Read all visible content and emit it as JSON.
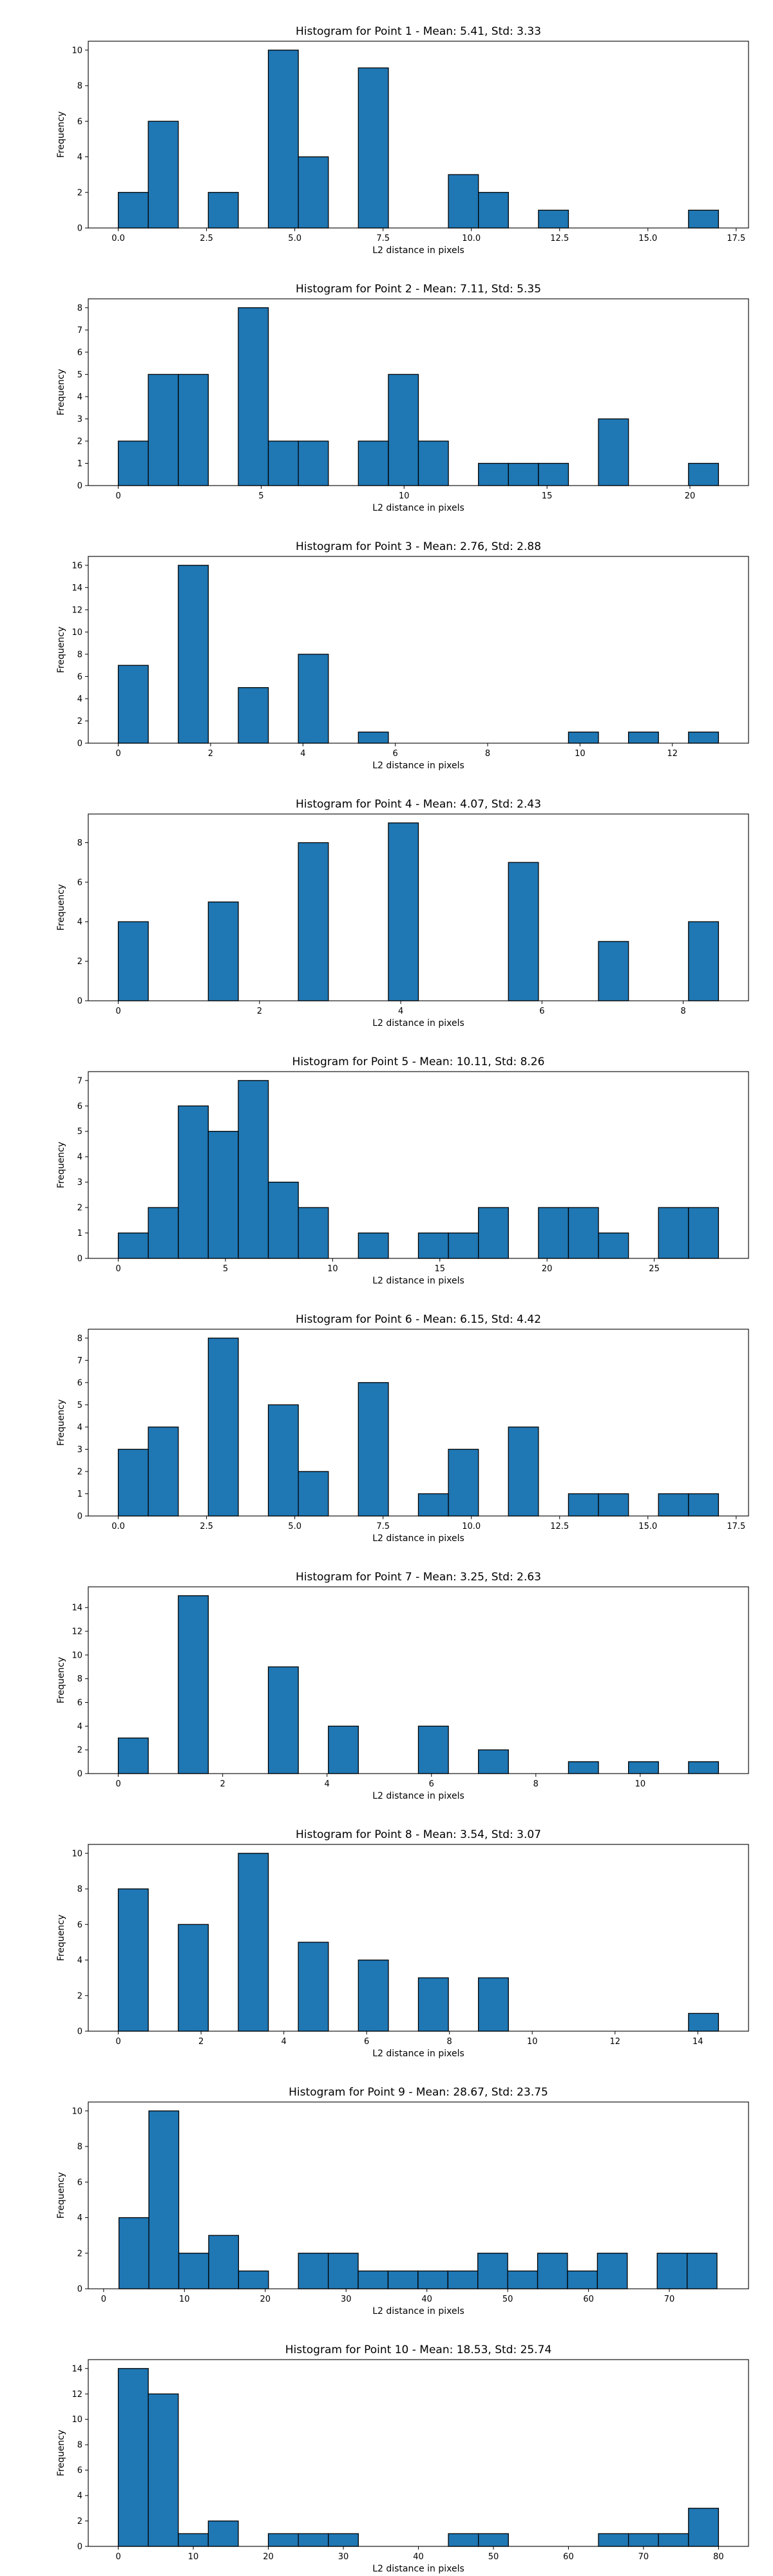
{
  "figure": {
    "xlabel": "L2 distance in pixels",
    "ylabel": "Frequency",
    "bar_color": "#1f77b4",
    "edge_color": "#000000"
  },
  "chart_data": [
    {
      "type": "bar",
      "title": "Histogram for Point 1 - Mean: 5.41, Std: 3.33",
      "xlabel": "L2 distance in pixels",
      "ylabel": "Frequency",
      "xlim": [
        -0.85,
        17.85
      ],
      "ylim": [
        0,
        10.5
      ],
      "xticks": [
        0.0,
        2.5,
        5.0,
        7.5,
        10.0,
        12.5,
        15.0,
        17.5
      ],
      "xtick_labels": [
        "0.0",
        "2.5",
        "5.0",
        "7.5",
        "10.0",
        "12.5",
        "15.0",
        "17.5"
      ],
      "yticks": [
        0,
        2,
        4,
        6,
        8,
        10
      ],
      "bin_edges": [
        0.0,
        0.85,
        1.7,
        2.55,
        3.4,
        4.25,
        5.1,
        5.95,
        6.8,
        7.65,
        8.5,
        9.35,
        10.2,
        11.05,
        11.9,
        12.75,
        13.6,
        14.45,
        15.3,
        16.15,
        17.0
      ],
      "counts": [
        2,
        6,
        0,
        2,
        0,
        10,
        4,
        0,
        9,
        0,
        0,
        3,
        2,
        0,
        1,
        0,
        0,
        0,
        0,
        1
      ]
    },
    {
      "type": "bar",
      "title": "Histogram for Point 2 - Mean: 7.11, Std: 5.35",
      "xlabel": "L2 distance in pixels",
      "ylabel": "Frequency",
      "xlim": [
        -1.05,
        22.05
      ],
      "ylim": [
        0,
        8.4
      ],
      "xticks": [
        0,
        5,
        10,
        15,
        20
      ],
      "xtick_labels": [
        "0",
        "5",
        "10",
        "15",
        "20"
      ],
      "yticks": [
        0,
        1,
        2,
        3,
        4,
        5,
        6,
        7,
        8
      ],
      "bin_edges": [
        0.0,
        1.05,
        2.1,
        3.15,
        4.2,
        5.25,
        6.3,
        7.35,
        8.4,
        9.45,
        10.5,
        11.55,
        12.6,
        13.65,
        14.7,
        15.75,
        16.8,
        17.85,
        18.9,
        19.95,
        21.0
      ],
      "counts": [
        2,
        5,
        5,
        0,
        8,
        2,
        2,
        0,
        2,
        5,
        2,
        0,
        1,
        1,
        1,
        0,
        3,
        0,
        0,
        1
      ]
    },
    {
      "type": "bar",
      "title": "Histogram for Point 3 - Mean: 2.76, Std: 2.88",
      "xlabel": "L2 distance in pixels",
      "ylabel": "Frequency",
      "xlim": [
        -0.65,
        13.65
      ],
      "ylim": [
        0,
        16.8
      ],
      "xticks": [
        0,
        2,
        4,
        6,
        8,
        10,
        12
      ],
      "xtick_labels": [
        "0",
        "2",
        "4",
        "6",
        "8",
        "10",
        "12"
      ],
      "yticks": [
        0,
        2,
        4,
        6,
        8,
        10,
        12,
        14,
        16
      ],
      "bin_edges": [
        0.0,
        0.65,
        1.3,
        1.95,
        2.6,
        3.25,
        3.9,
        4.55,
        5.2,
        5.85,
        6.5,
        7.15,
        7.8,
        8.45,
        9.1,
        9.75,
        10.4,
        11.05,
        11.7,
        12.35,
        13.0
      ],
      "counts": [
        7,
        0,
        16,
        0,
        5,
        0,
        8,
        0,
        1,
        0,
        0,
        0,
        0,
        0,
        0,
        1,
        0,
        1,
        0,
        1
      ]
    },
    {
      "type": "bar",
      "title": "Histogram for Point 4 - Mean: 4.07, Std: 2.43",
      "xlabel": "L2 distance in pixels",
      "ylabel": "Frequency",
      "xlim": [
        -0.425,
        8.925
      ],
      "ylim": [
        0,
        9.45
      ],
      "xticks": [
        0,
        2,
        4,
        6,
        8
      ],
      "xtick_labels": [
        "0",
        "2",
        "4",
        "6",
        "8"
      ],
      "yticks": [
        0,
        2,
        4,
        6,
        8
      ],
      "bin_edges": [
        0.0,
        0.425,
        0.85,
        1.275,
        1.7,
        2.125,
        2.55,
        2.975,
        3.4,
        3.825,
        4.25,
        4.675,
        5.1,
        5.525,
        5.95,
        6.375,
        6.8,
        7.225,
        7.65,
        8.075,
        8.5
      ],
      "counts": [
        4,
        0,
        0,
        5,
        0,
        0,
        8,
        0,
        0,
        9,
        0,
        0,
        0,
        7,
        0,
        0,
        3,
        0,
        0,
        4
      ]
    },
    {
      "type": "bar",
      "title": "Histogram for Point 5 - Mean: 10.11, Std: 8.26",
      "xlabel": "L2 distance in pixels",
      "ylabel": "Frequency",
      "xlim": [
        -1.4,
        29.4
      ],
      "ylim": [
        0,
        7.35
      ],
      "xticks": [
        0,
        5,
        10,
        15,
        20,
        25
      ],
      "xtick_labels": [
        "0",
        "5",
        "10",
        "15",
        "20",
        "25"
      ],
      "yticks": [
        0,
        1,
        2,
        3,
        4,
        5,
        6,
        7
      ],
      "bin_edges": [
        0.0,
        1.4,
        2.8,
        4.2,
        5.6,
        7.0,
        8.4,
        9.8,
        11.2,
        12.6,
        14.0,
        15.4,
        16.8,
        18.2,
        19.6,
        21.0,
        22.4,
        23.8,
        25.2,
        26.6,
        28.0
      ],
      "counts": [
        1,
        2,
        6,
        5,
        7,
        3,
        2,
        0,
        1,
        0,
        1,
        1,
        2,
        0,
        2,
        2,
        1,
        0,
        2,
        2
      ]
    },
    {
      "type": "bar",
      "title": "Histogram for Point 6 - Mean: 6.15, Std: 4.42",
      "xlabel": "L2 distance in pixels",
      "ylabel": "Frequency",
      "xlim": [
        -0.85,
        17.85
      ],
      "ylim": [
        0,
        8.4
      ],
      "xticks": [
        0.0,
        2.5,
        5.0,
        7.5,
        10.0,
        12.5,
        15.0,
        17.5
      ],
      "xtick_labels": [
        "0.0",
        "2.5",
        "5.0",
        "7.5",
        "10.0",
        "12.5",
        "15.0",
        "17.5"
      ],
      "yticks": [
        0,
        1,
        2,
        3,
        4,
        5,
        6,
        7,
        8
      ],
      "bin_edges": [
        0.0,
        0.85,
        1.7,
        2.55,
        3.4,
        4.25,
        5.1,
        5.95,
        6.8,
        7.65,
        8.5,
        9.35,
        10.2,
        11.05,
        11.9,
        12.75,
        13.6,
        14.45,
        15.3,
        16.15,
        17.0
      ],
      "counts": [
        3,
        4,
        0,
        8,
        0,
        5,
        2,
        0,
        6,
        0,
        1,
        3,
        0,
        4,
        0,
        1,
        1,
        0,
        1,
        1
      ]
    },
    {
      "type": "bar",
      "title": "Histogram for Point 7 - Mean: 3.25, Std: 2.63",
      "xlabel": "L2 distance in pixels",
      "ylabel": "Frequency",
      "xlim": [
        -0.575,
        12.075
      ],
      "ylim": [
        0,
        15.75
      ],
      "xticks": [
        0,
        2,
        4,
        6,
        8,
        10
      ],
      "xtick_labels": [
        "0",
        "2",
        "4",
        "6",
        "8",
        "10"
      ],
      "yticks": [
        0,
        2,
        4,
        6,
        8,
        10,
        12,
        14
      ],
      "bin_edges": [
        0.0,
        0.575,
        1.15,
        1.725,
        2.3,
        2.875,
        3.45,
        4.025,
        4.6,
        5.175,
        5.75,
        6.325,
        6.9,
        7.475,
        8.05,
        8.625,
        9.2,
        9.775,
        10.35,
        10.925,
        11.5
      ],
      "counts": [
        3,
        0,
        15,
        0,
        0,
        9,
        0,
        4,
        0,
        0,
        4,
        0,
        2,
        0,
        0,
        1,
        0,
        1,
        0,
        1
      ]
    },
    {
      "type": "bar",
      "title": "Histogram for Point 8 - Mean: 3.54, Std: 3.07",
      "xlabel": "L2 distance in pixels",
      "ylabel": "Frequency",
      "xlim": [
        -0.725,
        15.225
      ],
      "ylim": [
        0,
        10.5
      ],
      "xticks": [
        0,
        2,
        4,
        6,
        8,
        10,
        12,
        14
      ],
      "xtick_labels": [
        "0",
        "2",
        "4",
        "6",
        "8",
        "10",
        "12",
        "14"
      ],
      "yticks": [
        0,
        2,
        4,
        6,
        8,
        10
      ],
      "bin_edges": [
        0.0,
        0.725,
        1.45,
        2.175,
        2.9,
        3.625,
        4.35,
        5.075,
        5.8,
        6.525,
        7.25,
        7.975,
        8.7,
        9.425,
        10.15,
        10.875,
        11.6,
        12.325,
        13.05,
        13.775,
        14.5
      ],
      "counts": [
        8,
        0,
        6,
        0,
        10,
        0,
        5,
        0,
        4,
        0,
        3,
        0,
        3,
        0,
        0,
        0,
        0,
        0,
        0,
        1
      ]
    },
    {
      "type": "bar",
      "title": "Histogram for Point 9 - Mean: 28.67, Std: 23.75",
      "xlabel": "L2 distance in pixels",
      "ylabel": "Frequency",
      "xlim": [
        -1.9,
        79.8
      ],
      "ylim": [
        0,
        10.5
      ],
      "xticks": [
        0,
        10,
        20,
        30,
        40,
        50,
        60,
        70
      ],
      "xtick_labels": [
        "0",
        "10",
        "20",
        "30",
        "40",
        "50",
        "60",
        "70"
      ],
      "yticks": [
        0,
        2,
        4,
        6,
        8,
        10
      ],
      "bin_edges": [
        1.9,
        5.6,
        9.3,
        13.0,
        16.7,
        20.4,
        24.1,
        27.8,
        31.5,
        35.2,
        38.9,
        42.6,
        46.3,
        50.0,
        53.7,
        57.4,
        61.1,
        64.8,
        68.5,
        72.2,
        75.9
      ],
      "counts": [
        4,
        10,
        2,
        3,
        1,
        0,
        2,
        2,
        1,
        1,
        1,
        1,
        2,
        1,
        2,
        1,
        2,
        0,
        2,
        2
      ]
    },
    {
      "type": "bar",
      "title": "Histogram for Point 10 - Mean: 18.53, Std: 25.74",
      "xlabel": "L2 distance in pixels",
      "ylabel": "Frequency",
      "xlim": [
        -4.0,
        84.0
      ],
      "ylim": [
        0,
        14.7
      ],
      "xticks": [
        0,
        10,
        20,
        30,
        40,
        50,
        60,
        70,
        80
      ],
      "xtick_labels": [
        "0",
        "10",
        "20",
        "30",
        "40",
        "50",
        "60",
        "70",
        "80"
      ],
      "yticks": [
        0,
        2,
        4,
        6,
        8,
        10,
        12,
        14
      ],
      "bin_edges": [
        0.0,
        4.0,
        8.0,
        12.0,
        16.0,
        20.0,
        24.0,
        28.0,
        32.0,
        36.0,
        40.0,
        44.0,
        48.0,
        52.0,
        56.0,
        60.0,
        64.0,
        68.0,
        72.0,
        76.0,
        80.0
      ],
      "counts": [
        14,
        12,
        1,
        2,
        0,
        1,
        1,
        1,
        0,
        0,
        0,
        1,
        1,
        0,
        0,
        0,
        1,
        1,
        1,
        3
      ]
    }
  ]
}
